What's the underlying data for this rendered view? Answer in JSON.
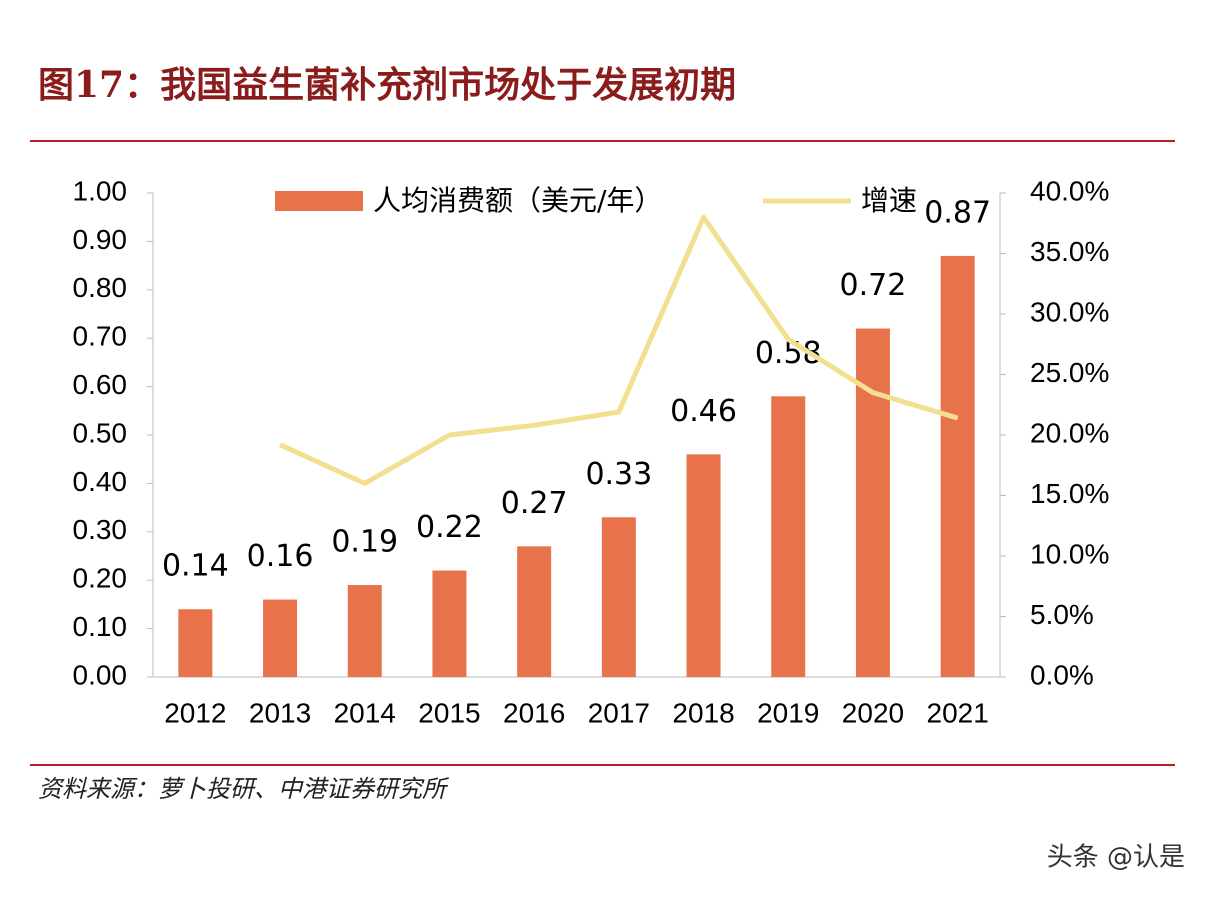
{
  "title": "图17：我国益生菌补充剂市场处于发展初期",
  "source": "资料来源：萝卜投研、中港证券研究所",
  "watermark": "头条 @认是",
  "chart_data": {
    "type": "bar",
    "categories": [
      "2012",
      "2013",
      "2014",
      "2015",
      "2016",
      "2017",
      "2018",
      "2019",
      "2020",
      "2021"
    ],
    "series": [
      {
        "name": "人均消费额（美元/年）",
        "type": "bar",
        "color": "#e8734a",
        "values": [
          0.14,
          0.16,
          0.19,
          0.22,
          0.27,
          0.33,
          0.46,
          0.58,
          0.72,
          0.87
        ]
      },
      {
        "name": "增速",
        "type": "line",
        "axis": "y2",
        "color": "#f2df8f",
        "values": [
          null,
          19.2,
          16.0,
          20.0,
          20.8,
          21.9,
          38.0,
          27.9,
          23.5,
          21.4
        ]
      }
    ],
    "ylim": [
      0,
      1
    ],
    "yticks": [
      {
        "value": 0,
        "label": "0.00"
      },
      {
        "value": 0.1,
        "label": "0.10"
      },
      {
        "value": 0.2,
        "label": "0.20"
      },
      {
        "value": 0.3,
        "label": "0.30"
      },
      {
        "value": 0.4,
        "label": "0.40"
      },
      {
        "value": 0.5,
        "label": "0.50"
      },
      {
        "value": 0.6,
        "label": "0.60"
      },
      {
        "value": 0.7,
        "label": "0.70"
      },
      {
        "value": 0.8,
        "label": "0.80"
      },
      {
        "value": 0.9,
        "label": "0.90"
      },
      {
        "value": 1,
        "label": "1.00"
      }
    ],
    "y2lim": [
      0,
      40
    ],
    "y2ticks": [
      {
        "value": 0,
        "label": "0.0%"
      },
      {
        "value": 5,
        "label": "5.0%"
      },
      {
        "value": 10,
        "label": "10.0%"
      },
      {
        "value": 15,
        "label": "15.0%"
      },
      {
        "value": 20,
        "label": "20.0%"
      },
      {
        "value": 25,
        "label": "25.0%"
      },
      {
        "value": 30,
        "label": "30.0%"
      },
      {
        "value": 35,
        "label": "35.0%"
      },
      {
        "value": 40,
        "label": "40.0%"
      }
    ],
    "legend": "top"
  }
}
